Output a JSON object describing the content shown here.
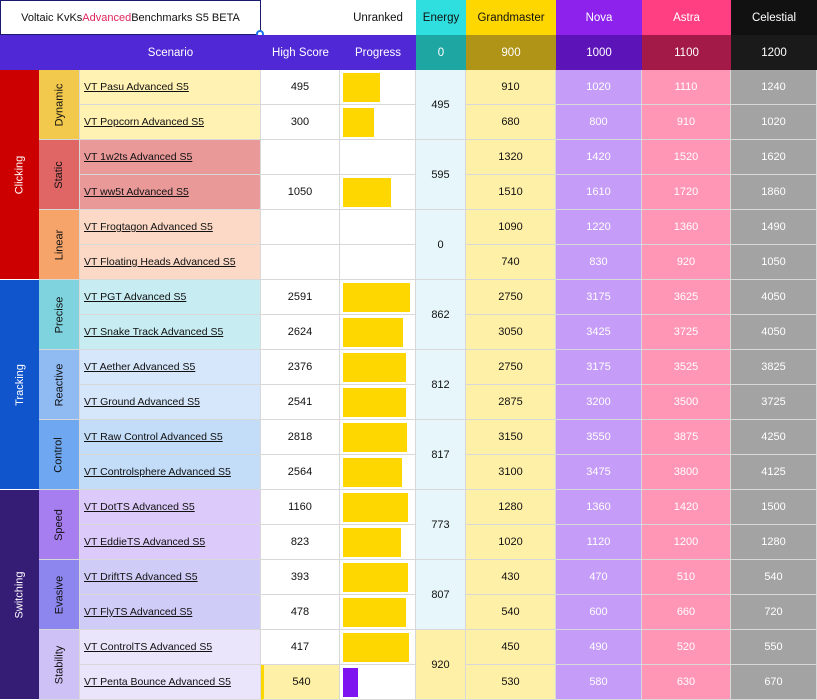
{
  "title": {
    "prefix": "Voltaic KvKs ",
    "highlight": "Advanced",
    "suffix": " Benchmarks S5 BETA"
  },
  "ranks": [
    {
      "name": "Unranked",
      "threshold_label": "Progress",
      "color": "#ffffff",
      "header_bg": "#ffffff",
      "sub_bg": "#5028d6",
      "text": "#111111",
      "sub_text": "#ffffff"
    },
    {
      "name": "Energy",
      "threshold": "0",
      "color": "#e6f6fb",
      "header_bg": "#2fdede",
      "sub_bg": "#1ea6a2",
      "text": "#111111",
      "sub_text": "#ffffff"
    },
    {
      "name": "Grandmaster",
      "threshold": "900",
      "color": "#fff0a8",
      "header_bg": "#ffd700",
      "sub_bg": "#b09418",
      "text": "#111111",
      "sub_text": "#ffffff"
    },
    {
      "name": "Nova",
      "threshold": "1000",
      "color": "#c59cf7",
      "header_bg": "#8c22ec",
      "sub_bg": "#5c14b9",
      "text": "#ffffff",
      "sub_text": "#ffffff"
    },
    {
      "name": "Astra",
      "threshold": "1100",
      "color": "#ff96b5",
      "header_bg": "#ff3f82",
      "sub_bg": "#a31a48",
      "text": "#ffffff",
      "sub_text": "#ffffff"
    },
    {
      "name": "Celestial",
      "threshold": "1200",
      "color": "#a3a3a3",
      "header_bg": "#111111",
      "sub_bg": "#1a1a1a",
      "text": "#ffffff",
      "sub_text": "#ffffff"
    }
  ],
  "columns": {
    "scenario": "Scenario",
    "high_score": "High Score",
    "progress": "Progress"
  },
  "categories": [
    {
      "name": "Clicking",
      "color": "#cc0000",
      "subcategories": [
        {
          "name": "Dynamic",
          "label_color": "#f2c94c",
          "row_color": "#fff2b2",
          "energy": "495",
          "energy_color": "#e6f6fb",
          "scenarios": [
            {
              "name": "VT Pasu Advanced S5",
              "score": "495",
              "progress": 0.55,
              "thresholds": [
                "910",
                "1020",
                "1110",
                "1240"
              ]
            },
            {
              "name": "VT Popcorn Advanced S5",
              "score": "300",
              "progress": 0.45,
              "thresholds": [
                "680",
                "800",
                "910",
                "1020"
              ]
            }
          ]
        },
        {
          "name": "Static",
          "label_color": "#e06666",
          "row_color": "#ea9999",
          "energy": "595",
          "energy_color": "#e6f6fb",
          "scenarios": [
            {
              "name": "VT 1w2ts Advanced S5",
              "score": "",
              "progress": 0,
              "thresholds": [
                "1320",
                "1420",
                "1520",
                "1620"
              ]
            },
            {
              "name": "VT ww5t Advanced S5",
              "score": "1050",
              "progress": 0.71,
              "thresholds": [
                "1510",
                "1610",
                "1720",
                "1860"
              ]
            }
          ]
        },
        {
          "name": "Linear",
          "label_color": "#f6a46a",
          "row_color": "#fcd9c6",
          "energy": "0",
          "energy_color": "#e6f6fb",
          "scenarios": [
            {
              "name": "VT Frogtagon Advanced S5",
              "score": "",
              "progress": 0,
              "thresholds": [
                "1090",
                "1220",
                "1360",
                "1490"
              ]
            },
            {
              "name": "VT Floating Heads Advanced S5",
              "score": "",
              "progress": 0,
              "thresholds": [
                "740",
                "830",
                "920",
                "1050"
              ]
            }
          ]
        }
      ]
    },
    {
      "name": "Tracking",
      "color": "#1155cc",
      "subcategories": [
        {
          "name": "Precise",
          "label_color": "#7fd3de",
          "row_color": "#c7ecf2",
          "energy": "862",
          "energy_color": "#e6f6fb",
          "scenarios": [
            {
              "name": "VT PGT Advanced S5",
              "score": "2591",
              "progress": 0.98,
              "thresholds": [
                "2750",
                "3175",
                "3625",
                "4050"
              ]
            },
            {
              "name": "VT Snake Track Advanced S5",
              "score": "2624",
              "progress": 0.88,
              "thresholds": [
                "3050",
                "3425",
                "3725",
                "4050"
              ]
            }
          ]
        },
        {
          "name": "Reactive",
          "label_color": "#8fbbf2",
          "row_color": "#d6e6fb",
          "energy": "812",
          "energy_color": "#e6f6fb",
          "scenarios": [
            {
              "name": "VT Aether Advanced S5",
              "score": "2376",
              "progress": 0.92,
              "thresholds": [
                "2750",
                "3175",
                "3525",
                "3825"
              ]
            },
            {
              "name": "VT Ground Advanced S5",
              "score": "2541",
              "progress": 0.93,
              "thresholds": [
                "2875",
                "3200",
                "3500",
                "3725"
              ]
            }
          ]
        },
        {
          "name": "Control",
          "label_color": "#6fa8f0",
          "row_color": "#c3ddf9",
          "energy": "817",
          "energy_color": "#e6f6fb",
          "scenarios": [
            {
              "name": "VT Raw Control Advanced S5",
              "score": "2818",
              "progress": 0.94,
              "thresholds": [
                "3150",
                "3550",
                "3875",
                "4250"
              ]
            },
            {
              "name": "VT Controlsphere Advanced S5",
              "score": "2564",
              "progress": 0.87,
              "thresholds": [
                "3100",
                "3475",
                "3800",
                "4125"
              ]
            }
          ]
        }
      ]
    },
    {
      "name": "Switching",
      "color": "#351c75",
      "subcategories": [
        {
          "name": "Speed",
          "label_color": "#a77ef0",
          "row_color": "#dccbfa",
          "energy": "773",
          "energy_color": "#e6f6fb",
          "scenarios": [
            {
              "name": "VT DotTS Advanced S5",
              "score": "1160",
              "progress": 0.96,
              "thresholds": [
                "1280",
                "1360",
                "1420",
                "1500"
              ]
            },
            {
              "name": "VT EddieTS Advanced S5",
              "score": "823",
              "progress": 0.85,
              "thresholds": [
                "1020",
                "1120",
                "1200",
                "1280"
              ]
            }
          ]
        },
        {
          "name": "Evasive",
          "label_color": "#8e86ef",
          "row_color": "#cfcdf8",
          "energy": "807",
          "energy_color": "#e6f6fb",
          "scenarios": [
            {
              "name": "VT DriftTS Advanced S5",
              "score": "393",
              "progress": 0.96,
              "thresholds": [
                "430",
                "470",
                "510",
                "540"
              ]
            },
            {
              "name": "VT FlyTS Advanced S5",
              "score": "478",
              "progress": 0.92,
              "thresholds": [
                "540",
                "600",
                "660",
                "720"
              ]
            }
          ]
        },
        {
          "name": "Stability",
          "label_color": "#cdc1f5",
          "row_color": "#ebe5fc",
          "energy": "920",
          "energy_color": "#fff0a8",
          "scenarios": [
            {
              "name": "VT ControlTS Advanced S5",
              "score": "417",
              "progress": 0.97,
              "thresholds": [
                "450",
                "490",
                "520",
                "550"
              ]
            },
            {
              "name": "VT Penta Bounce Advanced S5",
              "score": "540",
              "score_color": "#fff0a8",
              "progress": 0.22,
              "progress_color": "#7e14ef",
              "thresholds": [
                "530",
                "580",
                "630",
                "670"
              ]
            }
          ]
        }
      ]
    }
  ]
}
